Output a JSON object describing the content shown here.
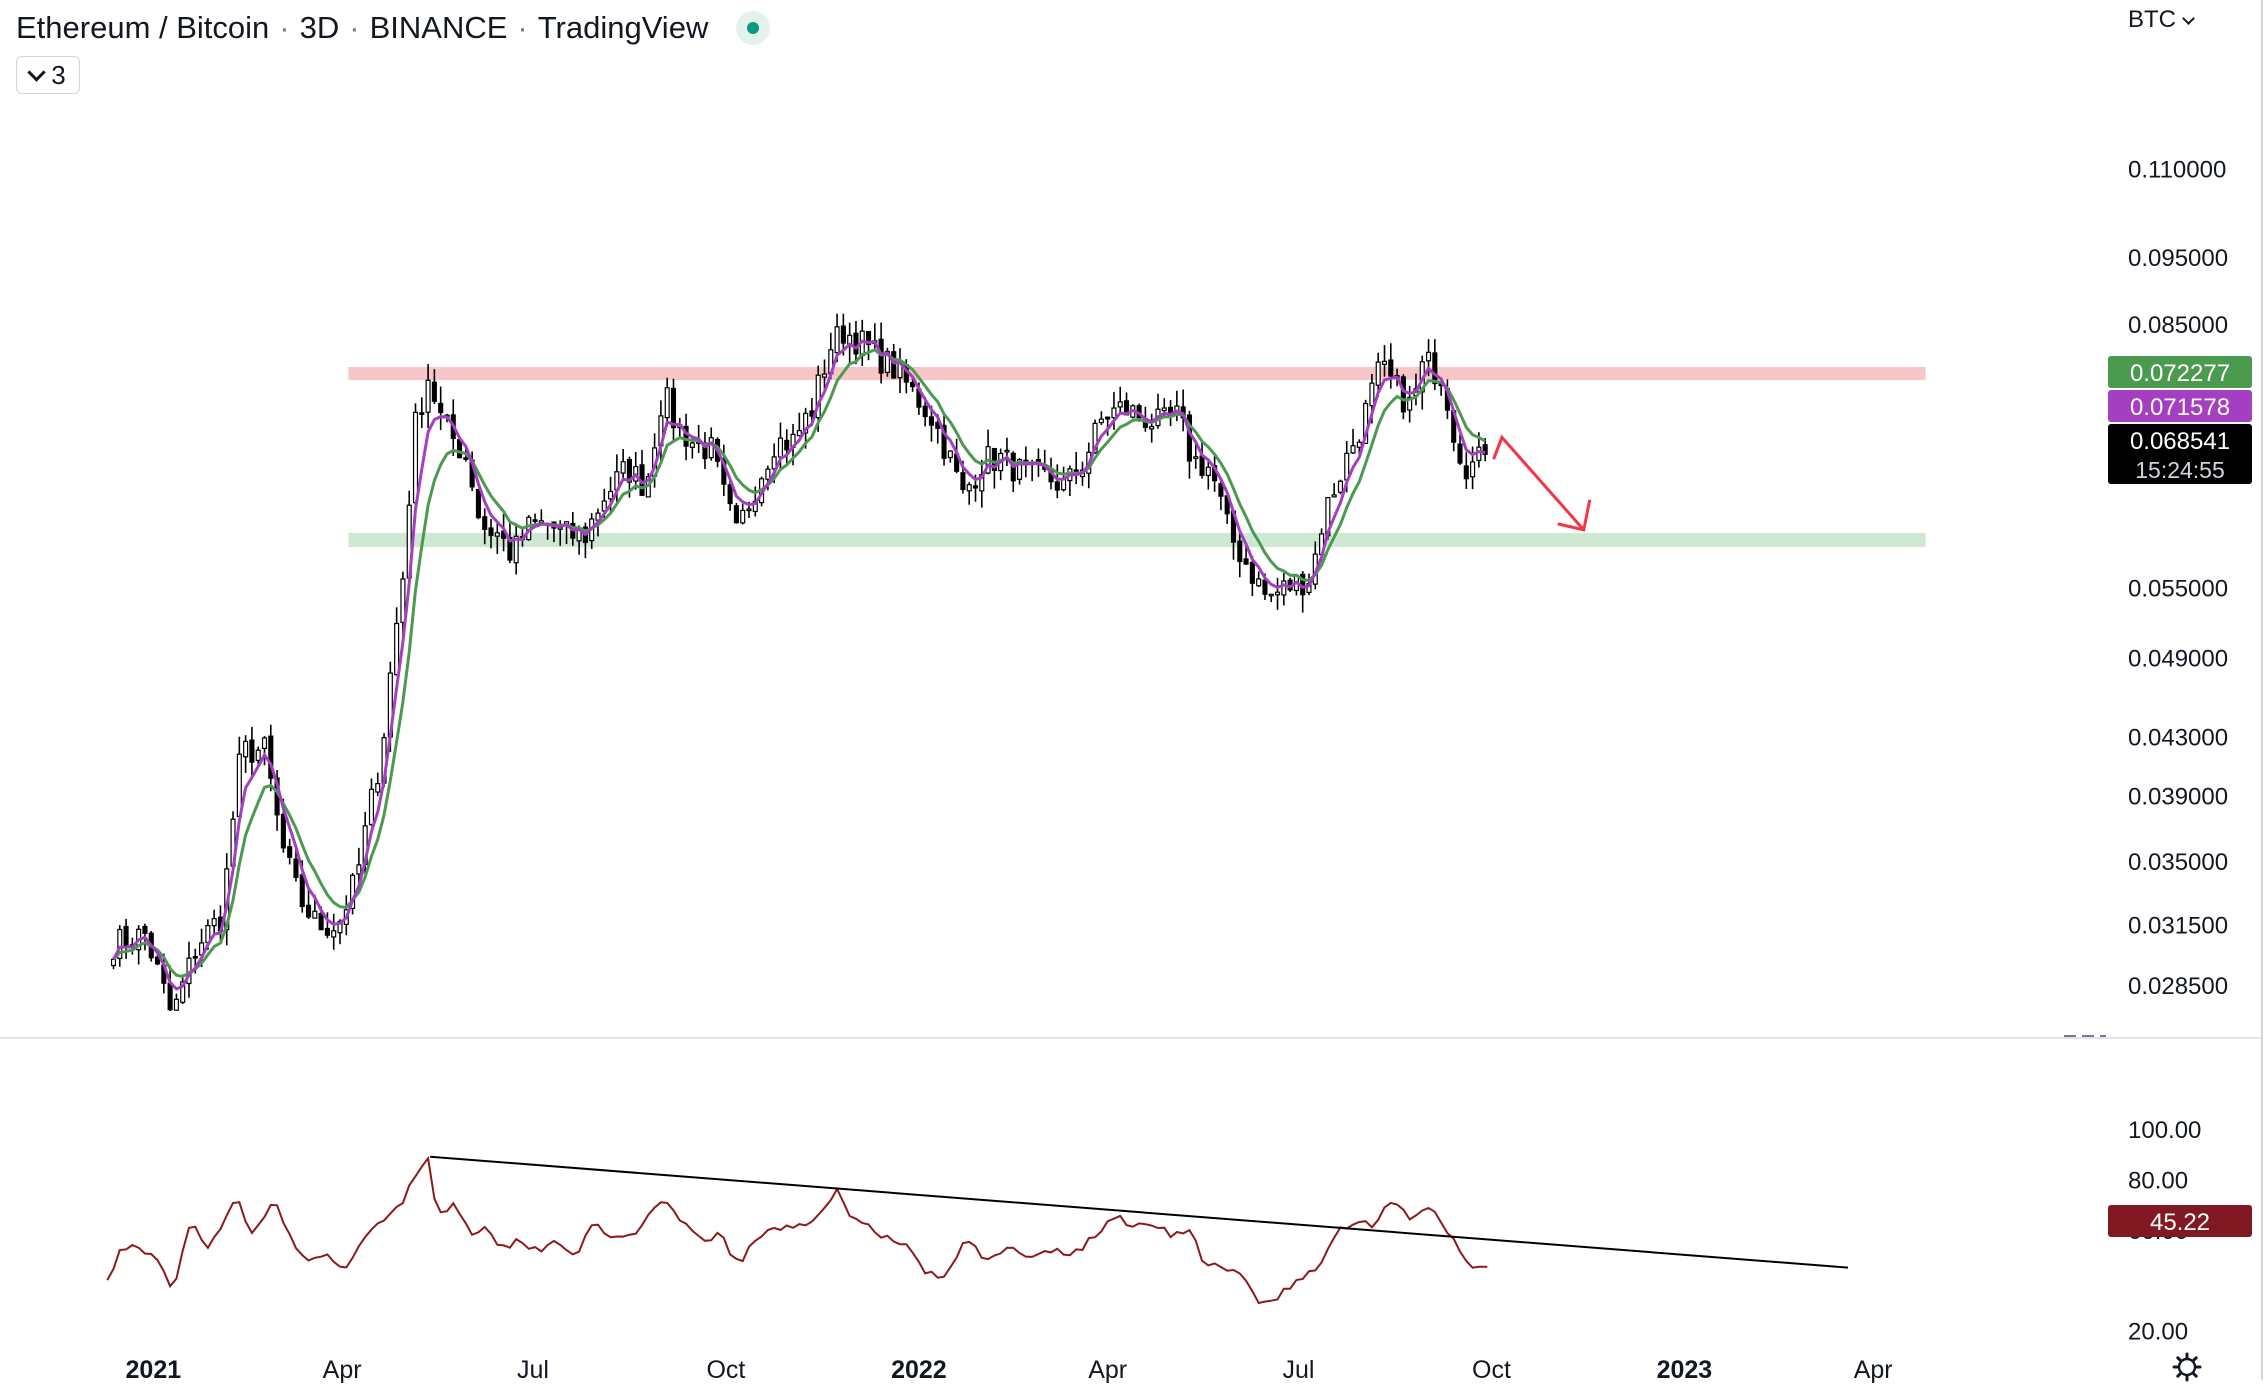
{
  "header": {
    "symbol": "Ethereum / Bitcoin",
    "interval": "3D",
    "exchange": "BINANCE",
    "publisher": "TradingView",
    "indicator_count": "3"
  },
  "currency": "BTC",
  "colors": {
    "up_candle": "#ffffff",
    "down_candle": "#000000",
    "ema_fast": "#a43fc2",
    "ema_slow": "#4c9a4f",
    "resistance_zone": "#f7c6c9",
    "support_zone": "#cfe8d2",
    "rsi_line": "#8b1a1a",
    "trend_line": "#000000",
    "arrow": "#f23645"
  },
  "chart_data": [
    {
      "type": "candlestick",
      "pane": "price",
      "scale": "log",
      "ylim": [
        0.0262,
        0.136
      ],
      "y_ticks": [
        "0.110000",
        "0.095000",
        "0.085000",
        "0.055000",
        "0.049000",
        "0.043000",
        "0.039000",
        "0.035000",
        "0.031500",
        "0.028500"
      ],
      "x_ticks": [
        "2021",
        "Apr",
        "Jul",
        "Oct",
        "2022",
        "Apr",
        "Jul",
        "Oct",
        "2023",
        "Apr"
      ],
      "x_tick_dates": [
        "2021-01-01",
        "2021-04-01",
        "2021-07-01",
        "2021-10-01",
        "2022-01-01",
        "2022-04-01",
        "2022-07-01",
        "2022-10-01",
        "2023-01-01",
        "2023-04-01"
      ],
      "xlim": [
        "2020-12-08",
        "2023-06-10"
      ],
      "candles": {
        "start_date": "2020-12-13",
        "interval": "3D",
        "close_anchors": [
          [
            "2020-12-13",
            0.0305
          ],
          [
            "2020-12-28",
            0.031
          ],
          [
            "2021-01-10",
            0.027
          ],
          [
            "2021-01-22",
            0.0305
          ],
          [
            "2021-02-03",
            0.032
          ],
          [
            "2021-02-12",
            0.042
          ],
          [
            "2021-02-23",
            0.042
          ],
          [
            "2021-03-03",
            0.036
          ],
          [
            "2021-03-11",
            0.033
          ],
          [
            "2021-03-20",
            0.0315
          ],
          [
            "2021-03-30",
            0.0315
          ],
          [
            "2021-04-08",
            0.034
          ],
          [
            "2021-04-20",
            0.042
          ],
          [
            "2021-04-30",
            0.056
          ],
          [
            "2021-05-06",
            0.072
          ],
          [
            "2021-05-12",
            0.078
          ],
          [
            "2021-05-19",
            0.072
          ],
          [
            "2021-05-25",
            0.07
          ],
          [
            "2021-05-31",
            0.068
          ],
          [
            "2021-06-06",
            0.061
          ],
          [
            "2021-06-15",
            0.06
          ],
          [
            "2021-06-21",
            0.058
          ],
          [
            "2021-06-30",
            0.061
          ],
          [
            "2021-07-09",
            0.061
          ],
          [
            "2021-07-15",
            0.06
          ],
          [
            "2021-07-26",
            0.06
          ],
          [
            "2021-08-04",
            0.064
          ],
          [
            "2021-08-15",
            0.067
          ],
          [
            "2021-08-24",
            0.065
          ],
          [
            "2021-09-01",
            0.076
          ],
          [
            "2021-09-07",
            0.072
          ],
          [
            "2021-09-15",
            0.07
          ],
          [
            "2021-09-24",
            0.069
          ],
          [
            "2021-09-30",
            0.064
          ],
          [
            "2021-10-06",
            0.06
          ],
          [
            "2021-10-15",
            0.065
          ],
          [
            "2021-10-24",
            0.07
          ],
          [
            "2021-11-02",
            0.07
          ],
          [
            "2021-11-11",
            0.074
          ],
          [
            "2021-11-20",
            0.082
          ],
          [
            "2021-11-26",
            0.084
          ],
          [
            "2021-12-02",
            0.083
          ],
          [
            "2021-12-11",
            0.081
          ],
          [
            "2021-12-20",
            0.079
          ],
          [
            "2021-12-29",
            0.076
          ],
          [
            "2022-01-07",
            0.073
          ],
          [
            "2022-01-16",
            0.068
          ],
          [
            "2022-01-22",
            0.064
          ],
          [
            "2022-02-01",
            0.068
          ],
          [
            "2022-02-10",
            0.068
          ],
          [
            "2022-02-22",
            0.066
          ],
          [
            "2022-03-03",
            0.066
          ],
          [
            "2022-03-12",
            0.065
          ],
          [
            "2022-03-21",
            0.068
          ],
          [
            "2022-03-30",
            0.073
          ],
          [
            "2022-04-08",
            0.074
          ],
          [
            "2022-04-17",
            0.073
          ],
          [
            "2022-04-26",
            0.072
          ],
          [
            "2022-05-05",
            0.073
          ],
          [
            "2022-05-11",
            0.068
          ],
          [
            "2022-05-20",
            0.067
          ],
          [
            "2022-05-29",
            0.06
          ],
          [
            "2022-06-07",
            0.057
          ],
          [
            "2022-06-16",
            0.054
          ],
          [
            "2022-06-25",
            0.055
          ],
          [
            "2022-07-07",
            0.056
          ],
          [
            "2022-07-13",
            0.062
          ],
          [
            "2022-07-22",
            0.067
          ],
          [
            "2022-07-31",
            0.072
          ],
          [
            "2022-08-09",
            0.079
          ],
          [
            "2022-08-15",
            0.077
          ],
          [
            "2022-08-24",
            0.074
          ],
          [
            "2022-08-30",
            0.08
          ],
          [
            "2022-09-08",
            0.078
          ],
          [
            "2022-09-14",
            0.07
          ],
          [
            "2022-09-20",
            0.067
          ],
          [
            "2022-09-29",
            0.06854
          ]
        ]
      },
      "series": [
        {
          "name": "",
          "kind": "ema-fast",
          "last": "0.071578"
        },
        {
          "name": "",
          "kind": "ema-slow",
          "last": "0.072277"
        }
      ],
      "zones": [
        {
          "kind": "resistance",
          "low": 0.0775,
          "high": 0.0792,
          "from": "2021-04-04",
          "to": "2023-04-26"
        },
        {
          "kind": "support",
          "low": 0.0588,
          "high": 0.0602,
          "from": "2021-04-04",
          "to": "2023-04-26"
        }
      ],
      "arrow": {
        "from": [
          "2022-10-02",
          0.068
        ],
        "via": [
          "2022-10-06",
          0.0705
        ],
        "to": [
          "2022-11-14",
          0.0605
        ]
      },
      "price_labels": [
        {
          "text": "0.072277",
          "kind": "ema-slow"
        },
        {
          "text": "0.071578",
          "kind": "ema-fast"
        },
        {
          "text": "0.068541",
          "kind": "last",
          "countdown": "15:24:55"
        }
      ]
    },
    {
      "type": "line",
      "pane": "rsi",
      "ylim": [
        0,
        100
      ],
      "y_ticks": [
        "100.00",
        "80.00",
        "60.00",
        "20.00"
      ],
      "rsi_anchors": [
        [
          "2020-12-10",
          40
        ],
        [
          "2020-12-16",
          52
        ],
        [
          "2020-12-25",
          54
        ],
        [
          "2021-01-04",
          46
        ],
        [
          "2021-01-10",
          35
        ],
        [
          "2021-01-19",
          63
        ],
        [
          "2021-01-28",
          53
        ],
        [
          "2021-02-09",
          73
        ],
        [
          "2021-02-18",
          58
        ],
        [
          "2021-02-27",
          73
        ],
        [
          "2021-03-08",
          55
        ],
        [
          "2021-03-17",
          47
        ],
        [
          "2021-03-26",
          49
        ],
        [
          "2021-04-04",
          45
        ],
        [
          "2021-04-13",
          58
        ],
        [
          "2021-04-22",
          65
        ],
        [
          "2021-05-01",
          73
        ],
        [
          "2021-05-07",
          84
        ],
        [
          "2021-05-13",
          89
        ],
        [
          "2021-05-16",
          66
        ],
        [
          "2021-05-25",
          70
        ],
        [
          "2021-06-03",
          58
        ],
        [
          "2021-06-09",
          63
        ],
        [
          "2021-06-15",
          52
        ],
        [
          "2021-06-24",
          56
        ],
        [
          "2021-07-03",
          52
        ],
        [
          "2021-07-12",
          56
        ],
        [
          "2021-07-21",
          50
        ],
        [
          "2021-07-30",
          62
        ],
        [
          "2021-08-08",
          56
        ],
        [
          "2021-08-20",
          60
        ],
        [
          "2021-09-01",
          71
        ],
        [
          "2021-09-10",
          63
        ],
        [
          "2021-09-19",
          56
        ],
        [
          "2021-09-28",
          58
        ],
        [
          "2021-10-07",
          46
        ],
        [
          "2021-10-16",
          57
        ],
        [
          "2021-10-28",
          61
        ],
        [
          "2021-11-09",
          63
        ],
        [
          "2021-11-18",
          68
        ],
        [
          "2021-11-24",
          76
        ],
        [
          "2021-11-30",
          65
        ],
        [
          "2021-12-09",
          61
        ],
        [
          "2021-12-18",
          56
        ],
        [
          "2021-12-27",
          53
        ],
        [
          "2022-01-05",
          43
        ],
        [
          "2022-01-14",
          40
        ],
        [
          "2022-01-23",
          57
        ],
        [
          "2022-02-01",
          49
        ],
        [
          "2022-02-13",
          53
        ],
        [
          "2022-02-22",
          48
        ],
        [
          "2022-03-06",
          52
        ],
        [
          "2022-03-15",
          50
        ],
        [
          "2022-03-27",
          58
        ],
        [
          "2022-04-05",
          66
        ],
        [
          "2022-04-14",
          61
        ],
        [
          "2022-04-23",
          63
        ],
        [
          "2022-05-02",
          58
        ],
        [
          "2022-05-11",
          59
        ],
        [
          "2022-05-17",
          47
        ],
        [
          "2022-05-26",
          44
        ],
        [
          "2022-06-04",
          42
        ],
        [
          "2022-06-13",
          30
        ],
        [
          "2022-06-22",
          34
        ],
        [
          "2022-07-01",
          40
        ],
        [
          "2022-07-10",
          44
        ],
        [
          "2022-07-19",
          59
        ],
        [
          "2022-07-28",
          64
        ],
        [
          "2022-08-06",
          62
        ],
        [
          "2022-08-15",
          73
        ],
        [
          "2022-08-24",
          64
        ],
        [
          "2022-09-02",
          68
        ],
        [
          "2022-09-11",
          58
        ],
        [
          "2022-09-20",
          46
        ],
        [
          "2022-09-29",
          45.22
        ]
      ],
      "last_label": "45.22",
      "trend_line": {
        "from": [
          "2021-05-13",
          89
        ],
        "to": [
          "2023-03-20",
          45
        ]
      }
    }
  ],
  "x_tick_bold": [
    true,
    false,
    false,
    false,
    true,
    false,
    false,
    false,
    true,
    false
  ]
}
